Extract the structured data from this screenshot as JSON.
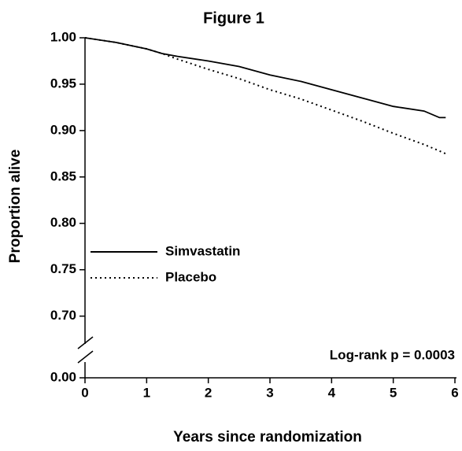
{
  "chart_data": {
    "type": "line",
    "title": "Figure 1",
    "x_label": "Years since randomization",
    "y_label": "Proportion alive",
    "annotation": "Log-rank p = 0.0003",
    "x": [
      0,
      0.5,
      1,
      1.25,
      1.5,
      2,
      2.5,
      3,
      3.5,
      4,
      4.5,
      5,
      5.5,
      5.75,
      5.85
    ],
    "series": [
      {
        "name": "Simvastatin",
        "color": "#000000",
        "line_style": "solid",
        "values": [
          1.0,
          0.995,
          0.988,
          0.983,
          0.98,
          0.975,
          0.969,
          0.96,
          0.953,
          0.944,
          0.935,
          0.926,
          0.921,
          0.914,
          0.914
        ]
      },
      {
        "name": "Placebo",
        "color": "#000000",
        "line_style": "dotted",
        "values": [
          1.0,
          0.995,
          0.988,
          0.983,
          0.977,
          0.966,
          0.956,
          0.944,
          0.934,
          0.922,
          0.91,
          0.897,
          0.885,
          0.878,
          0.875
        ]
      }
    ],
    "xlim": [
      0,
      6
    ],
    "xticks": [
      0,
      1,
      2,
      3,
      4,
      5,
      6
    ],
    "ylim": [
      0,
      1.0
    ],
    "y_break": [
      0,
      0.67
    ],
    "yticks": [
      {
        "value": 0,
        "label": "0.00"
      },
      {
        "value": 0.7,
        "label": "0.70"
      },
      {
        "value": 0.75,
        "label": "0.75"
      },
      {
        "value": 0.8,
        "label": "0.80"
      },
      {
        "value": 0.85,
        "label": "0.85"
      },
      {
        "value": 0.9,
        "label": "0.90"
      },
      {
        "value": 0.95,
        "label": "0.95"
      },
      {
        "value": 1.0,
        "label": "1.00"
      }
    ],
    "legend": "center-left",
    "grid": false
  }
}
